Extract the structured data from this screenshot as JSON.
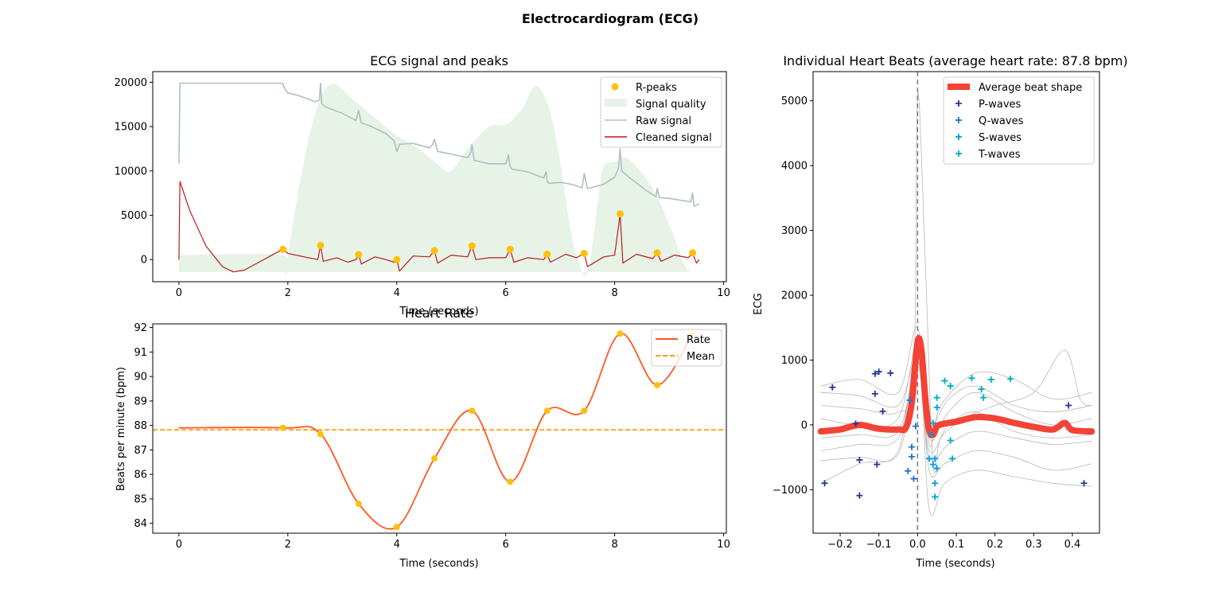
{
  "figure_title": "Electrocardiogram (ECG)",
  "colors": {
    "r_peaks": "#FFC107",
    "signal_quality": "#E6F3E6",
    "raw_signal": "#B0BEC5",
    "cleaned_signal": "#B71C1C",
    "rate": "#FF5722",
    "mean": "#FF9800",
    "average_beat": "#F44336",
    "individual_beats": "#B0B0B0",
    "p_waves": "#283593",
    "q_waves": "#1976D2",
    "s_waves": "#039BE5",
    "t_waves": "#00ACC1",
    "zero_line": "#808080"
  },
  "chart_data": [
    {
      "id": "ecg",
      "type": "line",
      "title": "ECG signal and peaks",
      "xlabel": "Time (seconds)",
      "ylabel": "",
      "xlim": [
        -0.48,
        10.05
      ],
      "ylim": [
        -2500,
        21200
      ],
      "xticks": [
        0,
        2,
        4,
        6,
        8,
        10
      ],
      "yticks": [
        0,
        5000,
        10000,
        15000,
        20000
      ],
      "legend_position": "top-right",
      "legend": [
        "R-peaks",
        "Signal quality",
        "Raw signal",
        "Cleaned signal"
      ],
      "r_peaks": {
        "x": [
          1.91,
          2.6,
          3.3,
          4.0,
          4.69,
          5.38,
          6.08,
          6.76,
          7.44,
          8.1,
          8.78,
          9.43
        ],
        "y": [
          1150,
          1600,
          550,
          0,
          1000,
          1550,
          1150,
          600,
          700,
          5150,
          750,
          750
        ]
      },
      "signal_quality": {
        "x": [
          0,
          1.9,
          1.95,
          2.2,
          2.5,
          2.8,
          3.2,
          3.6,
          4.0,
          4.4,
          4.8,
          5.0,
          5.3,
          5.7,
          6.0,
          6.3,
          6.55,
          6.8,
          7.0,
          7.2,
          7.4,
          7.5,
          7.6,
          7.7,
          7.8,
          8.0,
          8.2,
          8.4,
          8.7,
          9.0,
          9.3,
          9.5
        ],
        "y": [
          500,
          500,
          -1400,
          8000,
          16500,
          19800,
          18000,
          16000,
          14000,
          12500,
          10500,
          10000,
          12500,
          15000,
          15200,
          17000,
          19600,
          17000,
          11000,
          3000,
          -1400,
          -1400,
          2000,
          7000,
          10500,
          11000,
          11500,
          10500,
          8000,
          4000,
          -800,
          -1400
        ],
        "base": -1400
      },
      "raw_signal": {
        "x": [
          0,
          0.02,
          0.05,
          0.3,
          0.6,
          1.0,
          1.5,
          1.9,
          1.95,
          2.0,
          2.2,
          2.5,
          2.58,
          2.6,
          2.62,
          2.7,
          3.0,
          3.25,
          3.3,
          3.35,
          3.5,
          3.8,
          3.95,
          4.0,
          4.05,
          4.3,
          4.6,
          4.65,
          4.69,
          4.75,
          5.0,
          5.3,
          5.36,
          5.38,
          5.42,
          5.7,
          6.0,
          6.05,
          6.08,
          6.12,
          6.4,
          6.7,
          6.74,
          6.76,
          6.8,
          7.0,
          7.2,
          7.4,
          7.44,
          7.5,
          7.8,
          8.0,
          8.07,
          8.1,
          8.13,
          8.3,
          8.6,
          8.76,
          8.78,
          8.82,
          9.0,
          9.3,
          9.4,
          9.43,
          9.46,
          9.55
        ],
        "y": [
          10800,
          19900,
          19900,
          19900,
          19900,
          19900,
          19900,
          19900,
          19200,
          18800,
          18500,
          17800,
          18000,
          19900,
          17600,
          17200,
          16500,
          15700,
          16800,
          15400,
          15100,
          14200,
          13400,
          12200,
          13000,
          13100,
          12600,
          12900,
          13600,
          12200,
          11900,
          11500,
          12100,
          13000,
          11200,
          10800,
          10800,
          11800,
          10500,
          10200,
          9900,
          9200,
          9900,
          8800,
          8600,
          8700,
          8500,
          8100,
          9700,
          8000,
          8500,
          9300,
          10300,
          12500,
          10000,
          9100,
          7700,
          7100,
          8000,
          7000,
          6900,
          6600,
          6500,
          7500,
          6000,
          6300
        ]
      },
      "cleaned_signal": {
        "x": [
          0,
          0.02,
          0.2,
          0.5,
          0.8,
          1.0,
          1.2,
          1.5,
          1.8,
          1.91,
          2.0,
          2.3,
          2.55,
          2.6,
          2.65,
          2.9,
          3.1,
          3.25,
          3.3,
          3.35,
          3.6,
          3.8,
          3.95,
          4.0,
          4.05,
          4.3,
          4.6,
          4.69,
          4.75,
          5.0,
          5.3,
          5.38,
          5.45,
          5.7,
          6.0,
          6.08,
          6.15,
          6.4,
          6.7,
          6.76,
          6.82,
          7.1,
          7.3,
          7.44,
          7.5,
          7.8,
          8.0,
          8.1,
          8.15,
          8.4,
          8.7,
          8.78,
          8.85,
          9.1,
          9.35,
          9.43,
          9.5,
          9.55
        ],
        "y": [
          0,
          8800,
          5500,
          1500,
          -800,
          -1400,
          -1200,
          -200,
          800,
          1150,
          700,
          300,
          0,
          1600,
          -200,
          200,
          -300,
          0,
          550,
          -500,
          300,
          0,
          -300,
          0,
          -1300,
          400,
          300,
          1000,
          -400,
          500,
          300,
          1550,
          0,
          200,
          200,
          1150,
          -300,
          200,
          0,
          600,
          -300,
          600,
          200,
          700,
          -800,
          300,
          500,
          5150,
          -400,
          600,
          100,
          750,
          -200,
          500,
          200,
          750,
          -400,
          0
        ]
      }
    },
    {
      "id": "hr",
      "type": "line",
      "title": "Heart Rate",
      "xlabel": "Time (seconds)",
      "ylabel": "Beats per minute (bpm)",
      "xlim": [
        -0.48,
        10.05
      ],
      "ylim": [
        83.6,
        92.15
      ],
      "xticks": [
        0,
        2,
        4,
        6,
        8,
        10
      ],
      "yticks": [
        84,
        85,
        86,
        87,
        88,
        89,
        90,
        91,
        92
      ],
      "legend_position": "top-right",
      "legend": [
        "Rate",
        "Mean"
      ],
      "mean": 87.82,
      "rate": {
        "x": [
          0,
          1.91,
          2.6,
          3.3,
          4.0,
          4.69,
          5.38,
          6.08,
          6.76,
          7.44,
          8.1,
          8.78,
          9.43
        ],
        "y": [
          87.9,
          87.9,
          87.65,
          84.8,
          83.85,
          86.65,
          88.6,
          85.7,
          88.6,
          88.6,
          91.75,
          89.65,
          91.75
        ]
      }
    },
    {
      "id": "beats",
      "type": "line",
      "title": "Individual Heart Beats (average heart rate: 87.8 bpm)",
      "xlabel": "Time (seconds)",
      "ylabel": "ECG",
      "xlim": [
        -0.27,
        0.47
      ],
      "ylim": [
        -1670,
        5450
      ],
      "xticks": [
        -0.2,
        -0.1,
        0.0,
        0.1,
        0.2,
        0.3,
        0.4
      ],
      "yticks": [
        -1000,
        0,
        1000,
        2000,
        3000,
        4000,
        5000
      ],
      "legend_position": "top-right",
      "legend": [
        "Average beat shape",
        "P-waves",
        "Q-waves",
        "S-waves",
        "T-waves"
      ],
      "average_beat": {
        "x": [
          -0.25,
          -0.2,
          -0.15,
          -0.1,
          -0.05,
          -0.03,
          -0.015,
          0.0,
          0.01,
          0.02,
          0.03,
          0.04,
          0.05,
          0.07,
          0.1,
          0.15,
          0.2,
          0.25,
          0.3,
          0.35,
          0.38,
          0.4,
          0.45
        ],
        "y": [
          -100,
          -70,
          0,
          -60,
          -70,
          -40,
          350,
          1280,
          1150,
          400,
          -80,
          -150,
          -20,
          20,
          50,
          120,
          100,
          30,
          -30,
          -70,
          30,
          -80,
          -100
        ]
      },
      "individual_beats": [
        [
          [
            -0.25,
            300
          ],
          [
            -0.15,
            250
          ],
          [
            -0.05,
            200
          ],
          [
            -0.01,
            800
          ],
          [
            0.0,
            5100
          ],
          [
            0.02,
            2500
          ],
          [
            0.04,
            -600
          ],
          [
            0.06,
            -200
          ],
          [
            0.12,
            100
          ],
          [
            0.2,
            300
          ],
          [
            0.3,
            500
          ],
          [
            0.38,
            1150
          ],
          [
            0.42,
            400
          ],
          [
            0.45,
            300
          ]
        ],
        [
          [
            -0.25,
            600
          ],
          [
            -0.15,
            700
          ],
          [
            -0.05,
            500
          ],
          [
            0.0,
            1500
          ],
          [
            0.03,
            -300
          ],
          [
            0.06,
            300
          ],
          [
            0.15,
            800
          ],
          [
            0.25,
            700
          ],
          [
            0.35,
            400
          ],
          [
            0.45,
            500
          ]
        ],
        [
          [
            -0.25,
            -400
          ],
          [
            -0.15,
            -300
          ],
          [
            -0.05,
            -200
          ],
          [
            0.0,
            1000
          ],
          [
            0.03,
            -700
          ],
          [
            0.07,
            -600
          ],
          [
            0.15,
            -400
          ],
          [
            0.25,
            -500
          ],
          [
            0.35,
            -700
          ],
          [
            0.45,
            -600
          ]
        ],
        [
          [
            -0.25,
            -900
          ],
          [
            -0.15,
            -600
          ],
          [
            -0.05,
            -400
          ],
          [
            0.0,
            1200
          ],
          [
            0.03,
            -1300
          ],
          [
            0.07,
            -900
          ],
          [
            0.15,
            -700
          ],
          [
            0.25,
            -800
          ],
          [
            0.35,
            -900
          ],
          [
            0.45,
            -950
          ]
        ],
        [
          [
            -0.25,
            100
          ],
          [
            -0.15,
            0
          ],
          [
            -0.05,
            100
          ],
          [
            0.0,
            1300
          ],
          [
            0.03,
            -200
          ],
          [
            0.08,
            200
          ],
          [
            0.15,
            500
          ],
          [
            0.25,
            200
          ],
          [
            0.35,
            0
          ],
          [
            0.45,
            100
          ]
        ],
        [
          [
            -0.25,
            -550
          ],
          [
            -0.15,
            -500
          ],
          [
            -0.05,
            -450
          ],
          [
            0.0,
            900
          ],
          [
            0.03,
            -500
          ],
          [
            0.08,
            -300
          ],
          [
            0.15,
            -100
          ],
          [
            0.25,
            -200
          ],
          [
            0.35,
            -300
          ],
          [
            0.45,
            -250
          ]
        ],
        [
          [
            -0.25,
            500
          ],
          [
            -0.15,
            450
          ],
          [
            -0.05,
            300
          ],
          [
            0.0,
            1100
          ],
          [
            0.03,
            0
          ],
          [
            0.08,
            400
          ],
          [
            0.15,
            600
          ],
          [
            0.25,
            300
          ],
          [
            0.35,
            200
          ],
          [
            0.45,
            300
          ]
        ],
        [
          [
            -0.25,
            -200
          ],
          [
            -0.15,
            -150
          ],
          [
            -0.05,
            -100
          ],
          [
            0.0,
            1000
          ],
          [
            0.03,
            -400
          ],
          [
            0.08,
            0
          ],
          [
            0.15,
            200
          ],
          [
            0.25,
            -100
          ],
          [
            0.35,
            -200
          ],
          [
            0.45,
            -150
          ]
        ]
      ],
      "p_waves": {
        "x": [
          -0.24,
          -0.22,
          -0.16,
          -0.15,
          -0.15,
          -0.11,
          -0.11,
          -0.105,
          -0.1,
          -0.09,
          -0.07,
          0.39,
          0.43
        ],
        "y": [
          -900,
          580,
          20,
          -540,
          -1090,
          480,
          790,
          -610,
          820,
          210,
          800,
          300,
          -900
        ]
      },
      "q_waves": {
        "x": [
          -0.025,
          -0.02,
          -0.015,
          -0.015,
          -0.01,
          -0.005
        ],
        "y": [
          -710,
          380,
          -340,
          -490,
          -830,
          -20
        ]
      },
      "s_waves": {
        "x": [
          0.03,
          0.035,
          0.04,
          0.04,
          0.045,
          0.045,
          0.045,
          0.05,
          0.05
        ],
        "y": [
          -520,
          -140,
          -610,
          30,
          -1110,
          -900,
          -520,
          270,
          -670
        ]
      },
      "t_waves": {
        "x": [
          0.05,
          0.07,
          0.085,
          0.085,
          0.09,
          0.14,
          0.165,
          0.17,
          0.19,
          0.24
        ],
        "y": [
          420,
          680,
          600,
          -240,
          -520,
          720,
          550,
          420,
          700,
          710
        ]
      }
    }
  ]
}
